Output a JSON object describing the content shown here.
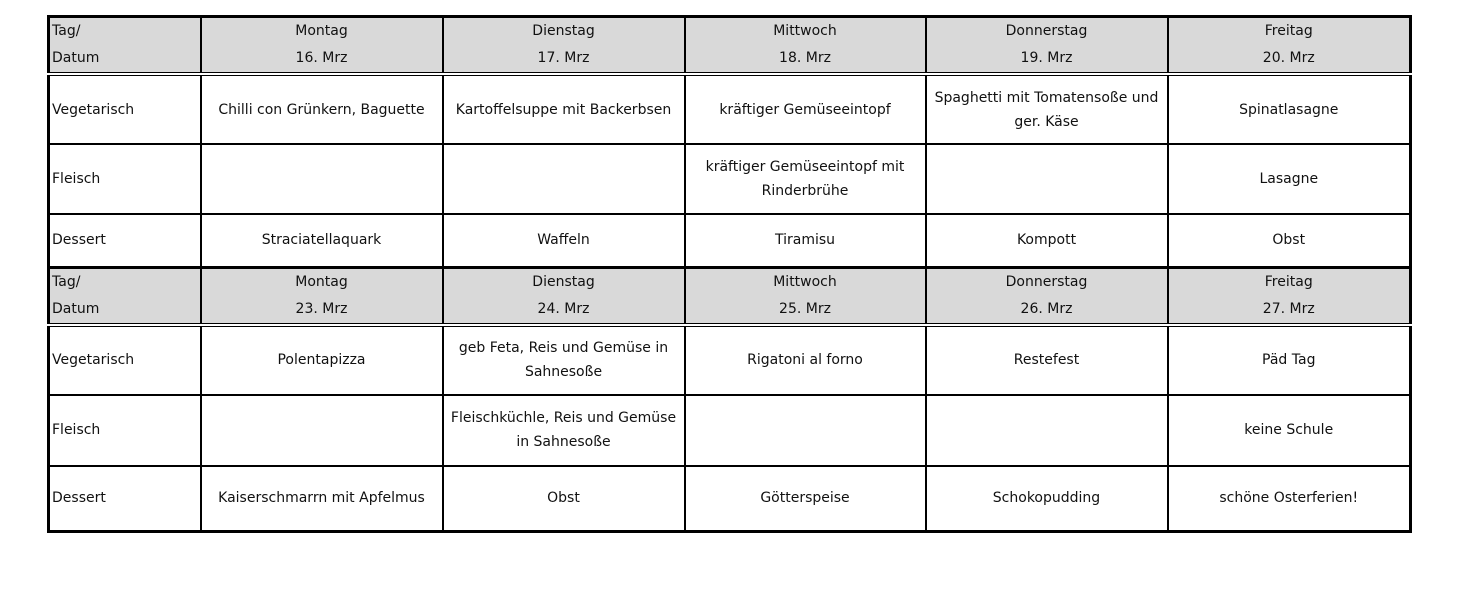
{
  "weeks": [
    {
      "header_label": [
        "Tag/",
        "Datum"
      ],
      "days": [
        {
          "day": "Montag",
          "date": "16. Mrz"
        },
        {
          "day": "Dienstag",
          "date": "17. Mrz"
        },
        {
          "day": "Mittwoch",
          "date": "18. Mrz"
        },
        {
          "day": "Donnerstag",
          "date": "19. Mrz"
        },
        {
          "day": "Freitag",
          "date": "20. Mrz"
        }
      ],
      "rows": [
        {
          "label": "Vegetarisch",
          "cells": [
            "Chilli con Grünkern, Baguette",
            "Kartoffelsuppe mit Backerbsen",
            "kräftiger Gemüseeintopf",
            "Spaghetti mit Tomatensoße und ger. Käse",
            "Spinatlasagne"
          ]
        },
        {
          "label": "Fleisch",
          "cells": [
            "",
            "",
            "kräftiger Gemüseeintopf mit Rinderbrühe",
            "",
            "Lasagne"
          ]
        },
        {
          "label": "Dessert",
          "cells": [
            "Straciatellaquark",
            "Waffeln",
            "Tiramisu",
            "Kompott",
            "Obst"
          ]
        }
      ]
    },
    {
      "header_label": [
        "Tag/",
        "Datum"
      ],
      "days": [
        {
          "day": "Montag",
          "date": "23. Mrz"
        },
        {
          "day": "Dienstag",
          "date": "24. Mrz"
        },
        {
          "day": "Mittwoch",
          "date": "25. Mrz"
        },
        {
          "day": "Donnerstag",
          "date": "26. Mrz"
        },
        {
          "day": "Freitag",
          "date": "27. Mrz"
        }
      ],
      "rows": [
        {
          "label": "Vegetarisch",
          "cells": [
            "Polentapizza",
            "geb Feta, Reis und Gemüse in Sahnesoße",
            "Rigatoni al forno",
            "Restefest",
            "Päd Tag"
          ]
        },
        {
          "label": "Fleisch",
          "cells": [
            "",
            "Fleischküchle, Reis und Gemüse in Sahnesoße",
            "",
            "",
            "keine Schule"
          ]
        },
        {
          "label": "Dessert",
          "cells": [
            "Kaiserschmarrn mit Apfelmus",
            "Obst",
            "Götterspeise",
            "Schokopudding",
            "schöne Osterferien!"
          ]
        }
      ]
    }
  ]
}
